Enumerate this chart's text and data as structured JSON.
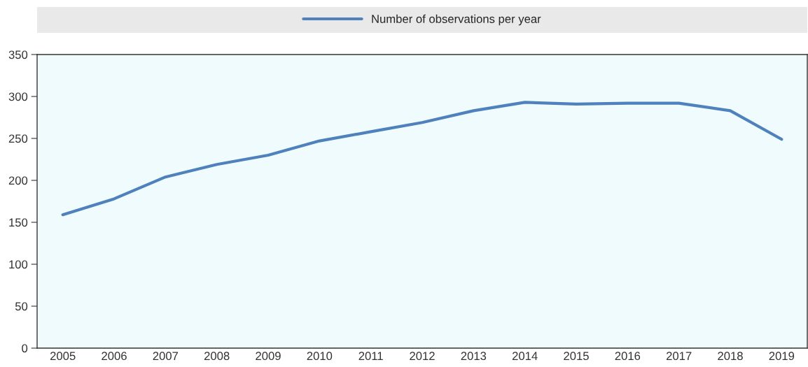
{
  "chart_data": {
    "type": "line",
    "categories": [
      "2005",
      "2006",
      "2007",
      "2008",
      "2009",
      "2010",
      "2011",
      "2012",
      "2013",
      "2014",
      "2015",
      "2016",
      "2017",
      "2018",
      "2019"
    ],
    "series": [
      {
        "name": "Number of observations per year",
        "color": "#4f81bd",
        "values": [
          159,
          178,
          204,
          219,
          230,
          247,
          258,
          269,
          283,
          293,
          291,
          292,
          292,
          283,
          249
        ]
      }
    ],
    "ylim": [
      0,
      350
    ],
    "yticks": [
      0,
      50,
      100,
      150,
      200,
      250,
      300,
      350
    ],
    "grid": false,
    "legend": "top",
    "marker": "none",
    "line_style": "solid"
  }
}
